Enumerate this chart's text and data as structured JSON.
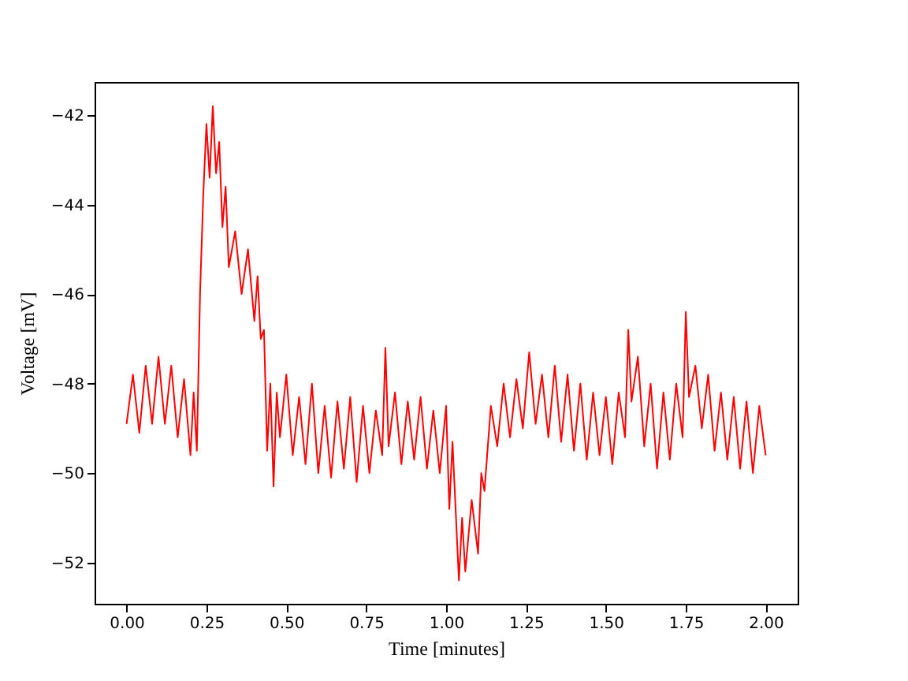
{
  "chart_data": {
    "type": "line",
    "xlabel": "Time [minutes]",
    "ylabel": "Voltage [mV]",
    "xlim": [
      -0.1,
      2.1
    ],
    "ylim": [
      -52.92,
      -41.26
    ],
    "xticks": [
      {
        "value": 0,
        "label": "0.00"
      },
      {
        "value": 0.25,
        "label": "0.25"
      },
      {
        "value": 0.5,
        "label": "0.50"
      },
      {
        "value": 0.75,
        "label": "0.75"
      },
      {
        "value": 1,
        "label": "1.00"
      },
      {
        "value": 1.25,
        "label": "1.25"
      },
      {
        "value": 1.5,
        "label": "1.50"
      },
      {
        "value": 1.75,
        "label": "1.75"
      },
      {
        "value": 2,
        "label": "2.00"
      }
    ],
    "yticks": [
      {
        "value": -52,
        "label": "−52"
      },
      {
        "value": -50,
        "label": "−50"
      },
      {
        "value": -48,
        "label": "−48"
      },
      {
        "value": -46,
        "label": "−46"
      },
      {
        "value": -44,
        "label": "−44"
      },
      {
        "value": -42,
        "label": "−42"
      }
    ],
    "grid": false,
    "line_style": "solid",
    "series": [
      {
        "color": "#ff0000",
        "x": [
          0.0,
          0.02,
          0.04,
          0.06,
          0.08,
          0.1,
          0.12,
          0.14,
          0.16,
          0.18,
          0.2,
          0.21,
          0.22,
          0.23,
          0.24,
          0.25,
          0.26,
          0.27,
          0.28,
          0.29,
          0.3,
          0.31,
          0.32,
          0.34,
          0.36,
          0.38,
          0.4,
          0.41,
          0.42,
          0.43,
          0.44,
          0.45,
          0.46,
          0.47,
          0.48,
          0.5,
          0.52,
          0.54,
          0.56,
          0.58,
          0.6,
          0.62,
          0.64,
          0.66,
          0.68,
          0.7,
          0.72,
          0.74,
          0.76,
          0.78,
          0.8,
          0.81,
          0.82,
          0.84,
          0.86,
          0.88,
          0.9,
          0.92,
          0.94,
          0.96,
          0.98,
          1.0,
          1.01,
          1.02,
          1.04,
          1.05,
          1.06,
          1.08,
          1.1,
          1.11,
          1.12,
          1.14,
          1.16,
          1.18,
          1.2,
          1.22,
          1.24,
          1.26,
          1.28,
          1.3,
          1.32,
          1.34,
          1.36,
          1.38,
          1.4,
          1.42,
          1.44,
          1.46,
          1.48,
          1.5,
          1.52,
          1.54,
          1.56,
          1.57,
          1.58,
          1.6,
          1.62,
          1.64,
          1.66,
          1.68,
          1.7,
          1.72,
          1.74,
          1.75,
          1.76,
          1.78,
          1.8,
          1.82,
          1.84,
          1.86,
          1.88,
          1.9,
          1.92,
          1.94,
          1.96,
          1.98,
          2.0
        ],
        "values": [
          -48.9,
          -47.8,
          -49.1,
          -47.6,
          -48.9,
          -47.4,
          -48.9,
          -47.6,
          -49.2,
          -47.9,
          -49.6,
          -48.2,
          -49.5,
          -46.0,
          -43.8,
          -42.2,
          -43.4,
          -41.8,
          -43.3,
          -42.6,
          -44.5,
          -43.6,
          -45.4,
          -44.6,
          -46.0,
          -45.0,
          -46.6,
          -45.6,
          -47.0,
          -46.8,
          -49.5,
          -48.0,
          -50.3,
          -48.2,
          -49.2,
          -47.8,
          -49.6,
          -48.3,
          -49.8,
          -48.0,
          -50.0,
          -48.5,
          -50.1,
          -48.4,
          -49.9,
          -48.3,
          -50.2,
          -48.5,
          -50.0,
          -48.6,
          -49.6,
          -47.2,
          -49.4,
          -48.2,
          -49.8,
          -48.4,
          -49.7,
          -48.3,
          -49.9,
          -48.6,
          -50.0,
          -48.5,
          -50.8,
          -49.3,
          -52.4,
          -51.0,
          -52.2,
          -50.6,
          -51.8,
          -50.0,
          -50.4,
          -48.5,
          -49.4,
          -48.0,
          -49.2,
          -47.9,
          -49.0,
          -47.3,
          -48.9,
          -47.8,
          -49.2,
          -47.6,
          -49.3,
          -47.8,
          -49.5,
          -48.0,
          -49.7,
          -48.2,
          -49.6,
          -48.3,
          -49.8,
          -48.2,
          -49.2,
          -46.8,
          -48.4,
          -47.4,
          -49.4,
          -48.0,
          -49.9,
          -48.2,
          -49.7,
          -48.0,
          -49.2,
          -46.4,
          -48.3,
          -47.6,
          -49.0,
          -47.8,
          -49.5,
          -48.2,
          -49.7,
          -48.3,
          -49.9,
          -48.4,
          -50.0,
          -48.5,
          -49.6
        ]
      }
    ]
  }
}
